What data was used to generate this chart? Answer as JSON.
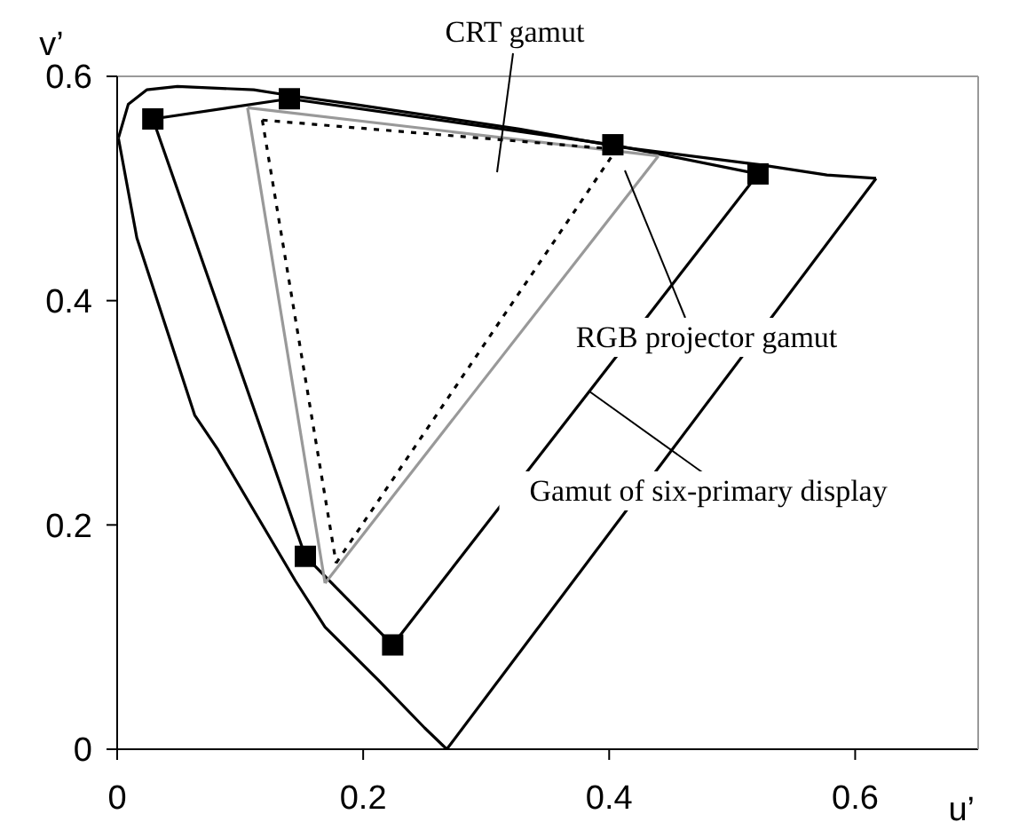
{
  "chart_data": {
    "type": "line",
    "xlabel": "u’",
    "ylabel": "v’",
    "xlim": [
      0,
      0.7
    ],
    "ylim": [
      0,
      0.6
    ],
    "xticks": [
      0,
      0.2,
      0.4,
      0.6
    ],
    "yticks": [
      0,
      0.2,
      0.4,
      0.6
    ],
    "grid": false,
    "legend": false,
    "series": [
      {
        "color": "#000000",
        "marker": "none",
        "line_style": "solid",
        "x": [
          0.268,
          0.617
        ],
        "values": [
          0,
          0.509
        ]
      },
      {
        "color": "#000000",
        "marker": "none",
        "line_style": "solid",
        "x": [
          0.001,
          0.016,
          0.063,
          0.082,
          0.145,
          0.169,
          0.212,
          0.25,
          0.268
        ],
        "values": [
          0.545,
          0.456,
          0.298,
          0.267,
          0.15,
          0.109,
          0.062,
          0.019,
          0
        ]
      },
      {
        "color": "#000000",
        "marker": "none",
        "line_style": "solid",
        "x": [
          0.001,
          0.009,
          0.024,
          0.049,
          0.111,
          0.14,
          0.193,
          0.327,
          0.409,
          0.524,
          0.577,
          0.617
        ],
        "values": [
          0.545,
          0.575,
          0.588,
          0.591,
          0.588,
          0.583,
          0.575,
          0.553,
          0.537,
          0.521,
          0.512,
          0.509
        ]
      },
      {
        "color": "#000000",
        "marker": "square",
        "line_style": "solid",
        "x": [
          0.029,
          0.14,
          0.403,
          0.521
        ],
        "values": [
          0.562,
          0.58,
          0.539,
          0.513
        ]
      },
      {
        "color": "#000000",
        "line_style": "solid",
        "x": [
          0.224,
          0.521
        ],
        "values": [
          0.093,
          0.513
        ]
      },
      {
        "color": "#000000",
        "marker": "square",
        "line_style": "solid",
        "x": [
          0.153,
          0.224
        ],
        "values": [
          0.172,
          0.093
        ]
      },
      {
        "color": "#000000",
        "marker": "none",
        "line_style": "solid",
        "x": [
          0.029,
          0.153
        ],
        "values": [
          0.562,
          0.172
        ]
      },
      {
        "color": "#999999",
        "marker": "none",
        "line_style": "solid",
        "x": [
          0.106,
          0.44
        ],
        "values": [
          0.572,
          0.529
        ]
      },
      {
        "color": "#999999",
        "marker": "none",
        "line_style": "solid",
        "x": [
          0.169,
          0.44
        ],
        "values": [
          0.148,
          0.529
        ]
      },
      {
        "color": "#999999",
        "marker": "none",
        "line_style": "solid",
        "x": [
          0.106,
          0.169
        ],
        "values": [
          0.572,
          0.148
        ]
      },
      {
        "color": "#000000",
        "marker": "none",
        "line_style": "dotted",
        "x": [
          0.118,
          0.406
        ],
        "values": [
          0.561,
          0.535
        ]
      },
      {
        "color": "#000000",
        "marker": "none",
        "line_style": "dotted",
        "x": [
          0.178,
          0.406
        ],
        "values": [
          0.166,
          0.535
        ]
      },
      {
        "color": "#000000",
        "marker": "none",
        "line_style": "dotted",
        "x": [
          0.118,
          0.178
        ],
        "values": [
          0.561,
          0.166
        ]
      }
    ],
    "annotations": [
      "CRT gamut",
      "RGB projector gamut",
      {
        "text": "Gamut of six-primary display",
        "x": 0.384,
        "y": 0.319
      }
    ]
  }
}
